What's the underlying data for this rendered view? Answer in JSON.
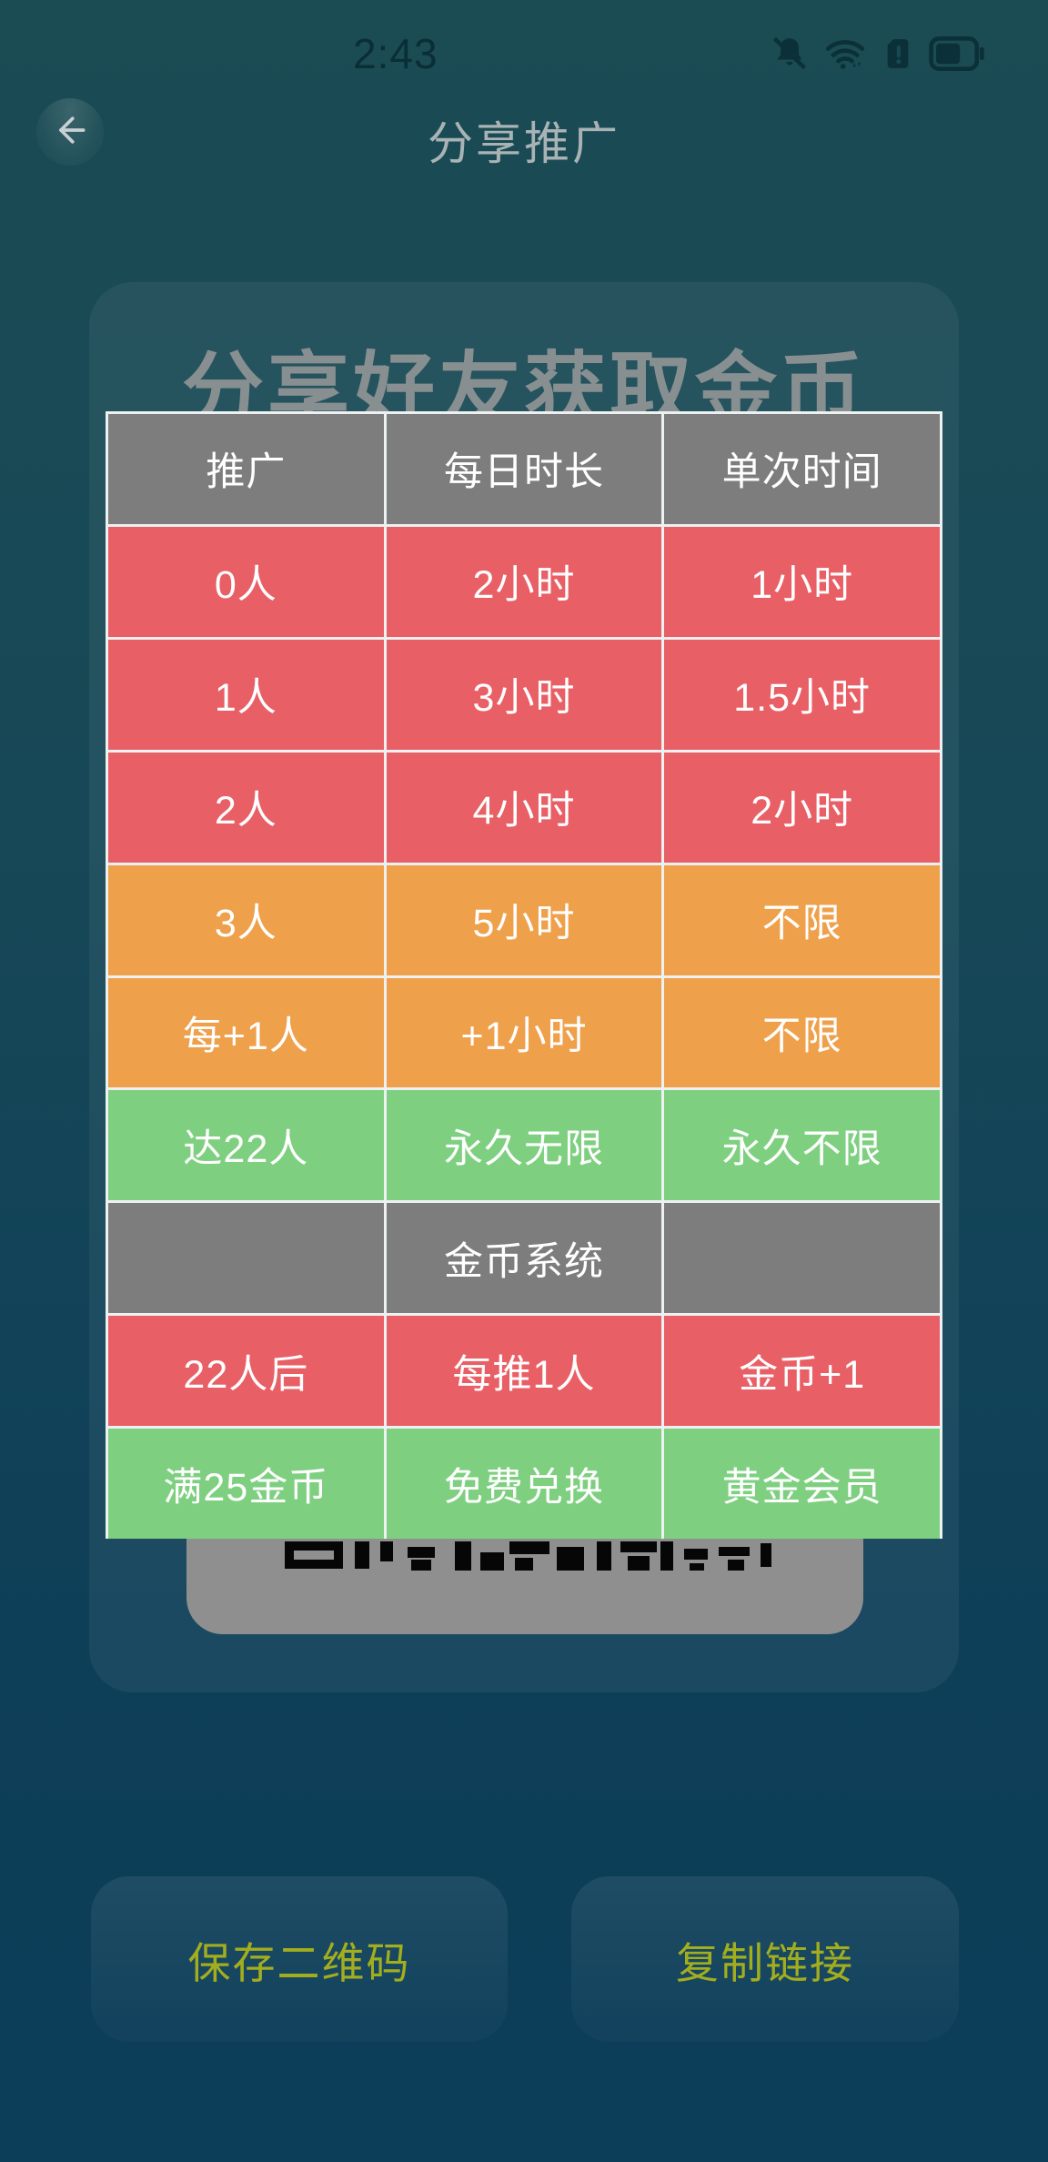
{
  "status_bar": {
    "time": "2:43",
    "icons": [
      "notifications-off-icon",
      "wifi-icon",
      "sim-alert-icon",
      "battery-icon"
    ]
  },
  "header": {
    "title": "分享推广"
  },
  "card": {
    "title": "分享好友获取金币"
  },
  "table": {
    "headers": [
      "推广",
      "每日时长",
      "单次时间"
    ],
    "rows": [
      {
        "cells": [
          "0人",
          "2小时",
          "1小时"
        ],
        "color": "red"
      },
      {
        "cells": [
          "1人",
          "3小时",
          "1.5小时"
        ],
        "color": "red"
      },
      {
        "cells": [
          "2人",
          "4小时",
          "2小时"
        ],
        "color": "red"
      },
      {
        "cells": [
          "3人",
          "5小时",
          "不限"
        ],
        "color": "orange"
      },
      {
        "cells": [
          "每+1人",
          "+1小时",
          "不限"
        ],
        "color": "orange"
      },
      {
        "cells": [
          "达22人",
          "永久无限",
          "永久不限"
        ],
        "color": "green"
      },
      {
        "cells": [
          "",
          "金币系统",
          ""
        ],
        "color": "gray"
      },
      {
        "cells": [
          "22人后",
          "每推1人",
          "金币+1"
        ],
        "color": "red"
      },
      {
        "cells": [
          "满25金币",
          "免费兑换",
          "黄金会员"
        ],
        "color": "green"
      }
    ],
    "colors": {
      "red": "#e95f66",
      "orange": "#efa04b",
      "green": "#7ed080",
      "gray": "#7d7d7d"
    }
  },
  "buttons": {
    "save_qr": "保存二维码",
    "copy_link": "复制链接"
  }
}
